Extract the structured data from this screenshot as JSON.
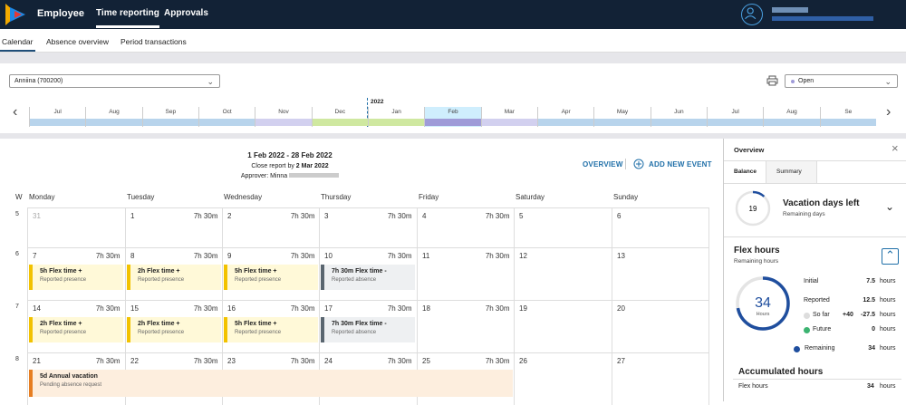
{
  "header": {
    "app": "Employee",
    "nav": [
      "Time reporting",
      "Approvals"
    ]
  },
  "subnav": [
    "Calendar",
    "Absence overview",
    "Period transactions"
  ],
  "employee_select": "Anniina (700200)",
  "status_select": "Open",
  "timeline": {
    "year": "2022",
    "months": [
      {
        "label": "Jul",
        "color": "#b8d4ec"
      },
      {
        "label": "Aug",
        "color": "#b8d4ec"
      },
      {
        "label": "Sep",
        "color": "#b8d4ec"
      },
      {
        "label": "Oct",
        "color": "#b8d4ec"
      },
      {
        "label": "Nov",
        "color": "#d2d0ef"
      },
      {
        "label": "Dec",
        "color": "#cfe8a0"
      },
      {
        "label": "Jan",
        "color": "#cfe8a0"
      },
      {
        "label": "Feb",
        "color": "#9f9bd8",
        "selected": true
      },
      {
        "label": "Mar",
        "color": "#d2d0ef"
      },
      {
        "label": "Apr",
        "color": "#b8d4ec"
      },
      {
        "label": "May",
        "color": "#b8d4ec"
      },
      {
        "label": "Jun",
        "color": "#b8d4ec"
      },
      {
        "label": "Jul",
        "color": "#b8d4ec"
      },
      {
        "label": "Aug",
        "color": "#b8d4ec"
      },
      {
        "label": "Se",
        "color": "#b8d4ec"
      }
    ]
  },
  "period": {
    "range": "1 Feb 2022 - 28 Feb 2022",
    "close_prefix": "Close report by",
    "close_date": "2 Mar 2022",
    "approver": "Approver: Minna"
  },
  "links": {
    "overview": "OVERVIEW",
    "add": "ADD NEW EVENT"
  },
  "days": [
    "W",
    "Monday",
    "Tuesday",
    "Wednesday",
    "Thursday",
    "Friday",
    "Saturday",
    "Sunday"
  ],
  "weeks": [
    {
      "w": "5",
      "cells": [
        {
          "d": "31",
          "h": "",
          "muted": true
        },
        {
          "d": "1",
          "h": "7h 30m"
        },
        {
          "d": "2",
          "h": "7h 30m"
        },
        {
          "d": "3",
          "h": "7h 30m"
        },
        {
          "d": "4",
          "h": "7h 30m"
        },
        {
          "d": "5",
          "h": ""
        },
        {
          "d": "6",
          "h": ""
        }
      ]
    },
    {
      "w": "6",
      "cells": [
        {
          "d": "7",
          "h": "7h 30m"
        },
        {
          "d": "8",
          "h": "7h 30m"
        },
        {
          "d": "9",
          "h": "7h 30m"
        },
        {
          "d": "10",
          "h": "7h 30m"
        },
        {
          "d": "11",
          "h": "7h 30m"
        },
        {
          "d": "12",
          "h": ""
        },
        {
          "d": "13",
          "h": ""
        }
      ]
    },
    {
      "w": "7",
      "cells": [
        {
          "d": "14",
          "h": "7h 30m"
        },
        {
          "d": "15",
          "h": "7h 30m"
        },
        {
          "d": "16",
          "h": "7h 30m"
        },
        {
          "d": "17",
          "h": "7h 30m"
        },
        {
          "d": "18",
          "h": "7h 30m"
        },
        {
          "d": "19",
          "h": ""
        },
        {
          "d": "20",
          "h": ""
        }
      ]
    },
    {
      "w": "8",
      "cells": [
        {
          "d": "21",
          "h": "7h 30m"
        },
        {
          "d": "22",
          "h": "7h 30m"
        },
        {
          "d": "23",
          "h": "7h 30m"
        },
        {
          "d": "24",
          "h": "7h 30m"
        },
        {
          "d": "25",
          "h": "7h 30m"
        },
        {
          "d": "26",
          "h": ""
        },
        {
          "d": "27",
          "h": ""
        }
      ]
    }
  ],
  "events": [
    {
      "week": 1,
      "day": 0,
      "span": 1,
      "title": "5h Flex time +",
      "sub": "Reported presence",
      "kind": "flex"
    },
    {
      "week": 1,
      "day": 1,
      "span": 1,
      "title": "2h Flex time +",
      "sub": "Reported presence",
      "kind": "flex"
    },
    {
      "week": 1,
      "day": 2,
      "span": 1,
      "title": "5h Flex time +",
      "sub": "Reported presence",
      "kind": "flex"
    },
    {
      "week": 1,
      "day": 3,
      "span": 1,
      "title": "7h 30m Flex time -",
      "sub": "Reported absence",
      "kind": "absence"
    },
    {
      "week": 2,
      "day": 0,
      "span": 1,
      "title": "2h Flex time +",
      "sub": "Reported presence",
      "kind": "flex"
    },
    {
      "week": 2,
      "day": 1,
      "span": 1,
      "title": "2h Flex time +",
      "sub": "Reported presence",
      "kind": "flex"
    },
    {
      "week": 2,
      "day": 2,
      "span": 1,
      "title": "5h Flex time +",
      "sub": "Reported presence",
      "kind": "flex"
    },
    {
      "week": 2,
      "day": 3,
      "span": 1,
      "title": "7h 30m Flex time -",
      "sub": "Reported absence",
      "kind": "absence"
    },
    {
      "week": 3,
      "day": 0,
      "span": 5,
      "title": "5d Annual vacation",
      "sub": "Pending absence request",
      "kind": "vacation"
    }
  ],
  "overview": {
    "title": "Overview",
    "tabs": [
      "Balance",
      "Summary"
    ],
    "vacation": {
      "value": "19",
      "fraction": 0.12,
      "title": "Vacation days left",
      "sub": "Remaining days"
    },
    "flex": {
      "title": "Flex hours",
      "sub": "Remaining hours",
      "value": "34",
      "unit": "Hours",
      "fraction": 0.72,
      "rows": [
        {
          "label": "Initial",
          "v1": "",
          "v2": "7.5",
          "unit": "hours"
        },
        {
          "label": "Reported",
          "v1": "",
          "v2": "12.5",
          "unit": "hours"
        },
        {
          "label": "So far",
          "v1": "+40",
          "v2": "-27.5",
          "unit": "hours",
          "dot": "#dddddd"
        },
        {
          "label": "Future",
          "v1": "",
          "v2": "0",
          "unit": "hours",
          "dot": "#3cb371"
        },
        {
          "label": "Remaining",
          "v1": "",
          "v2": "34",
          "unit": "hours",
          "dot": "#1f4e9e"
        }
      ]
    },
    "accumulated": {
      "title": "Accumulated hours",
      "row_label": "Flex hours",
      "row_value": "34",
      "row_unit": "hours"
    }
  }
}
